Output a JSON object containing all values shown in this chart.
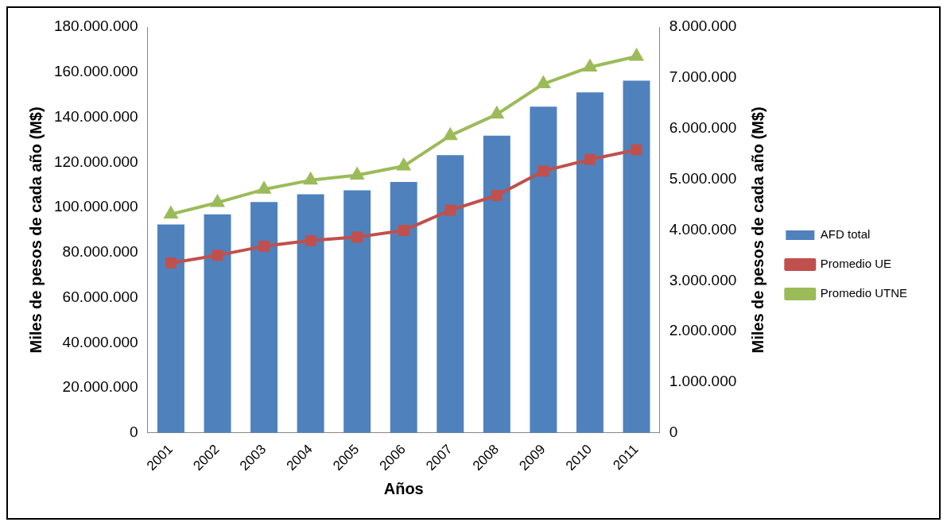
{
  "chart_data": {
    "type": "bar",
    "xlabel": "Años",
    "ylabel": "Miles de pesos de cada año (M$)",
    "y2label": "Miles de pesos de cada año (M$)",
    "categories": [
      "2001",
      "2002",
      "2003",
      "2004",
      "2005",
      "2006",
      "2007",
      "2008",
      "2009",
      "2010",
      "2011"
    ],
    "series": [
      {
        "name": "AFD total",
        "color": "#4f81bd",
        "values": [
          92400000,
          96900000,
          102400000,
          105800000,
          107600000,
          111300000,
          123200000,
          131800000,
          144700000,
          151000000,
          156200000
        ]
      },
      {
        "name": "Promedio UE",
        "type": "line",
        "axis": "y2",
        "marker": "square",
        "color": "#c0504d",
        "values": [
          3350000,
          3500000,
          3680000,
          3790000,
          3860000,
          3990000,
          4390000,
          4680000,
          5160000,
          5390000,
          5580000
        ]
      },
      {
        "name": "Promedio UTNE",
        "type": "line",
        "axis": "y2",
        "marker": "triangle",
        "color": "#9bbb59",
        "values": [
          4310000,
          4540000,
          4800000,
          4980000,
          5080000,
          5260000,
          5860000,
          6280000,
          6880000,
          7210000,
          7420000
        ]
      }
    ],
    "ylim": [
      0,
      180000000
    ],
    "yticks": [
      {
        "value": 0,
        "label": "0"
      },
      {
        "value": 20000000,
        "label": "20.000.000"
      },
      {
        "value": 40000000,
        "label": "40.000.000"
      },
      {
        "value": 60000000,
        "label": "60.000.000"
      },
      {
        "value": 80000000,
        "label": "80.000.000"
      },
      {
        "value": 100000000,
        "label": "100.000.000"
      },
      {
        "value": 120000000,
        "label": "120.000.000"
      },
      {
        "value": 140000000,
        "label": "140.000.000"
      },
      {
        "value": 160000000,
        "label": "160.000.000"
      },
      {
        "value": 180000000,
        "label": "180.000.000"
      }
    ],
    "y2lim": [
      0,
      8000000
    ],
    "y2ticks": [
      {
        "value": 0,
        "label": "0"
      },
      {
        "value": 1000000,
        "label": "1.000.000"
      },
      {
        "value": 2000000,
        "label": "2.000.000"
      },
      {
        "value": 3000000,
        "label": "3.000.000"
      },
      {
        "value": 4000000,
        "label": "4.000.000"
      },
      {
        "value": 5000000,
        "label": "5.000.000"
      },
      {
        "value": 6000000,
        "label": "6.000.000"
      },
      {
        "value": 7000000,
        "label": "7.000.000"
      },
      {
        "value": 8000000,
        "label": "8.000.000"
      }
    ],
    "grid": false,
    "legend": "right",
    "line_style": "solid"
  }
}
